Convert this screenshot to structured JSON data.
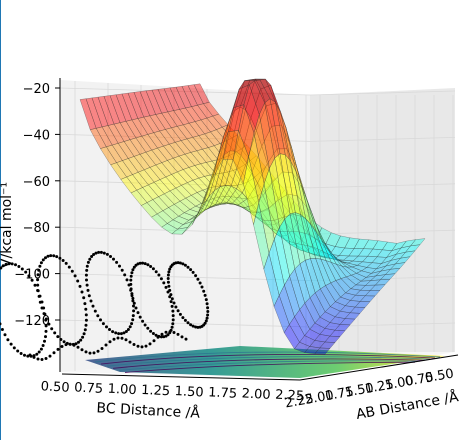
{
  "chart_data": {
    "type": "surface",
    "z_label": "V/kcal mol⁻¹",
    "x_label": "BC Distance /Å",
    "y_label": "AB Distance /Å",
    "z_ticks": [
      -20,
      -40,
      -60,
      -80,
      -100,
      -120
    ],
    "x_ticks": [
      "0.50",
      "0.75",
      "1.00",
      "1.25",
      "1.50",
      "1.75",
      "2.00",
      "2.25"
    ],
    "y_ticks": [
      "2.25",
      "2.00",
      "1.75",
      "1.50",
      "1.25",
      "1.00",
      "0.75",
      "0.50"
    ],
    "zlim": [
      -125,
      -20
    ],
    "xlim": [
      0.5,
      2.25
    ],
    "ylim": [
      0.5,
      2.25
    ],
    "colormap": "jet",
    "grid": true,
    "colors": {
      "trajectory": "#000000",
      "frame_line": "#1f77b4"
    }
  }
}
